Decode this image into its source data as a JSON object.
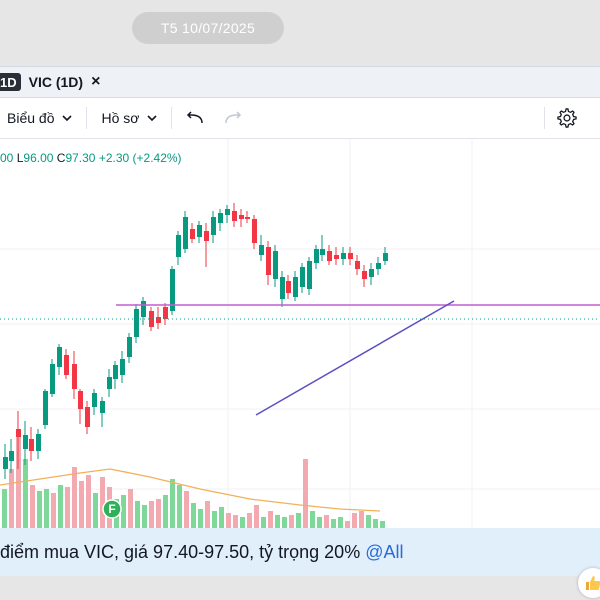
{
  "header": {
    "date": "T5 10/07/2025"
  },
  "tab": {
    "badge": "1D",
    "title": "VIC (1D)",
    "close": "×"
  },
  "toolbar": {
    "chart_label": "Biểu đồ",
    "profile_label": "Hồ sơ"
  },
  "legend": {
    "low_prefix": "L",
    "low": "96.00",
    "close_prefix": "C",
    "close": "97.30",
    "change": "+2.30 (+2.42%)",
    "high_fragment": "00"
  },
  "message": {
    "text": "điểm mua VIC, giá 97.40-97.50, tỷ trọng 20%",
    "mention": "@All"
  },
  "colors": {
    "up": "#089981",
    "down": "#f23645",
    "resistance": "#c45ecf",
    "trendline": "#5b4fc4",
    "volume_ma": "#f0b15a"
  },
  "icons": {
    "undo": "undo-icon",
    "redo": "redo-icon",
    "settings": "gear-icon",
    "reaction": "thumbs-up-icon",
    "marker": "F"
  }
}
